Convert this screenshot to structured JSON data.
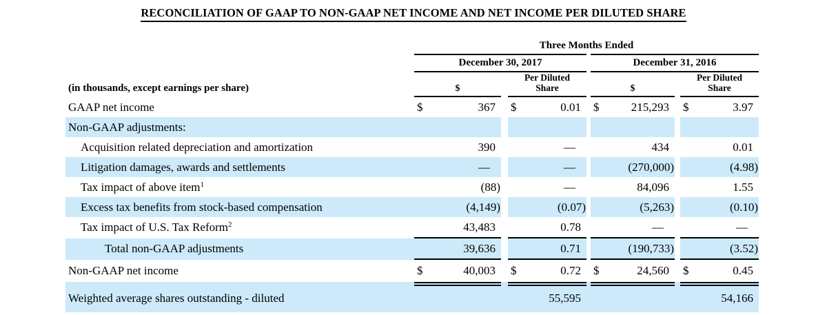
{
  "title": "RECONCILIATION OF GAAP TO NON-GAAP NET INCOME AND NET INCOME PER DILUTED SHARE",
  "colors": {
    "row_shade": "#cdeafa",
    "rule": "#000000"
  },
  "table": {
    "period_header": "Three Months Ended",
    "column_groups": [
      {
        "label": "December 30, 2017"
      },
      {
        "label": "December 31, 2016"
      }
    ],
    "column_headers": {
      "amount": "$",
      "per_share": "Per Diluted Share"
    },
    "units_note": "(in thousands, except earnings per share)",
    "rows": [
      {
        "label": "GAAP net income",
        "sup": "",
        "cells": [
          {
            "cur": "$",
            "val": "367"
          },
          {
            "cur": "$",
            "val": "0.01"
          },
          {
            "cur": "$",
            "val": "215,293"
          },
          {
            "cur": "$",
            "val": "3.97"
          }
        ]
      },
      {
        "label": "Non-GAAP adjustments:",
        "sup": "",
        "cells": [
          {},
          {},
          {},
          {}
        ]
      },
      {
        "label": "Acquisition related depreciation and amortization",
        "sup": "",
        "cells": [
          {
            "val": "390"
          },
          {
            "val": "—"
          },
          {
            "val": "434"
          },
          {
            "val": "0.01"
          }
        ]
      },
      {
        "label": "Litigation damages, awards and settlements",
        "sup": "",
        "cells": [
          {
            "val": "—"
          },
          {
            "val": "—"
          },
          {
            "val": "(270,000)"
          },
          {
            "val": "(4.98)"
          }
        ]
      },
      {
        "label": "Tax impact of above item",
        "sup": "1",
        "cells": [
          {
            "val": "(88)"
          },
          {
            "val": "—"
          },
          {
            "val": "84,096"
          },
          {
            "val": "1.55"
          }
        ]
      },
      {
        "label": "Excess tax benefits from stock-based compensation",
        "sup": "",
        "cells": [
          {
            "val": "(4,149)"
          },
          {
            "val": "(0.07)"
          },
          {
            "val": "(5,263)"
          },
          {
            "val": "(0.10)"
          }
        ]
      },
      {
        "label": "Tax impact of U.S. Tax Reform",
        "sup": "2",
        "cells": [
          {
            "val": "43,483"
          },
          {
            "val": "0.78"
          },
          {
            "val": "—"
          },
          {
            "val": "—"
          }
        ]
      },
      {
        "label": "Total non-GAAP adjustments",
        "sup": "",
        "cells": [
          {
            "val": "39,636"
          },
          {
            "val": "0.71"
          },
          {
            "val": "(190,733)"
          },
          {
            "val": "(3.52)"
          }
        ]
      },
      {
        "label": "Non-GAAP net income",
        "sup": "",
        "cells": [
          {
            "cur": "$",
            "val": "40,003"
          },
          {
            "cur": "$",
            "val": "0.72"
          },
          {
            "cur": "$",
            "val": "24,560"
          },
          {
            "cur": "$",
            "val": "0.45"
          }
        ]
      },
      {
        "label": "Weighted average shares outstanding - diluted",
        "sup": "",
        "cells": [
          {},
          {
            "val": "55,595"
          },
          {},
          {
            "val": "54,166"
          }
        ]
      }
    ]
  }
}
